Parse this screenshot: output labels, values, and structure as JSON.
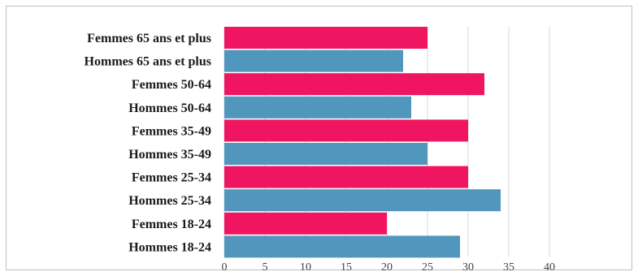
{
  "chart_data": {
    "type": "bar",
    "orientation": "horizontal",
    "categories": [
      "Femmes 65 ans et plus",
      "Hommes 65 ans et plus",
      "Femmes 50-64",
      "Hommes 50-64",
      "Femmes 35-49",
      "Hommes 35-49",
      "Femmes 25-34",
      "Hommes 25-34",
      "Femmes 18-24",
      "Hommes 18-24"
    ],
    "values": [
      25,
      22,
      32,
      23,
      30,
      25,
      30,
      34,
      20,
      29
    ],
    "bar_colors": [
      "#ef1561",
      "#5096bd",
      "#ef1561",
      "#5096bd",
      "#ef1561",
      "#5096bd",
      "#ef1561",
      "#5096bd",
      "#ef1561",
      "#5096bd"
    ],
    "xlim": [
      0,
      40
    ],
    "x_ticks": [
      "0",
      "5",
      "10",
      "15",
      "20",
      "25",
      "30",
      "35",
      "40"
    ],
    "grid": true,
    "title": "",
    "xlabel": "",
    "ylabel": ""
  }
}
